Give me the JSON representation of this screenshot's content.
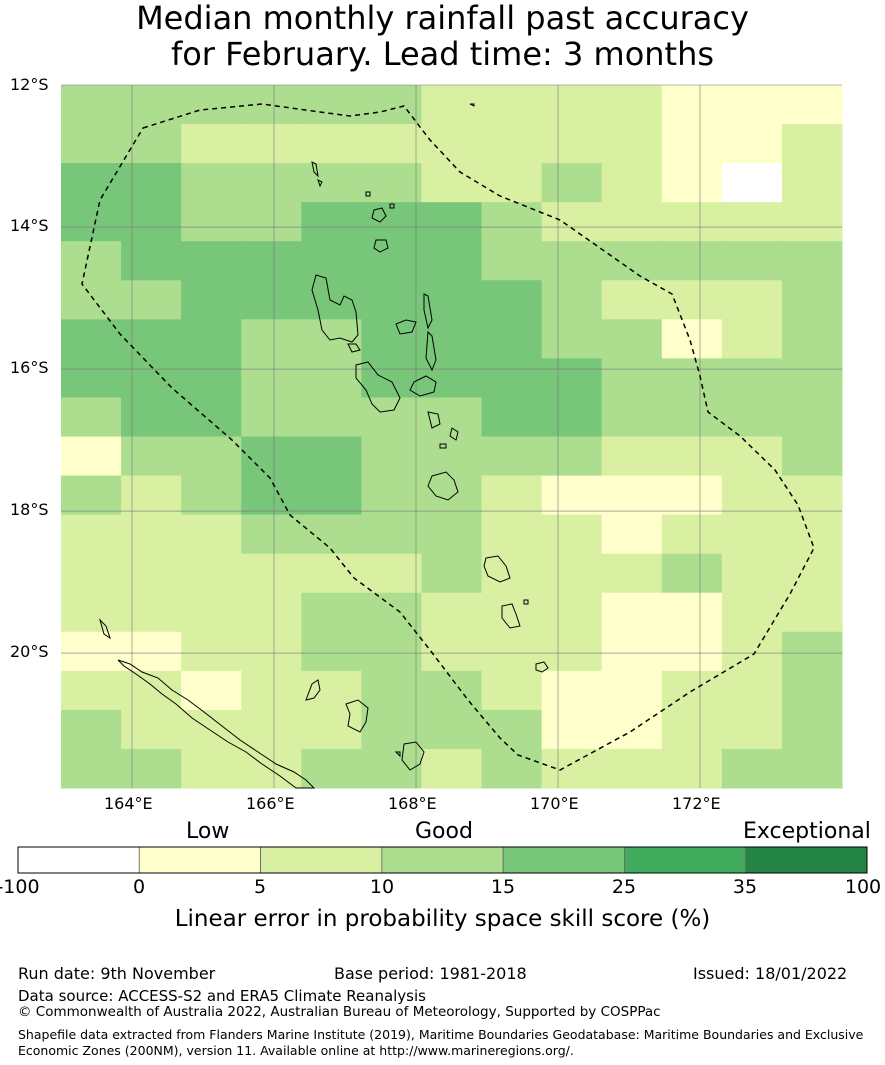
{
  "header": {
    "title_line1": "Median monthly rainfall past accuracy",
    "title_line2": "for February. Lead time: 3 months"
  },
  "map": {
    "lat_labels": [
      "12°S",
      "14°S",
      "16°S",
      "18°S",
      "20°S"
    ],
    "lon_labels": [
      "164°E",
      "166°E",
      "168°E",
      "170°E",
      "172°E"
    ],
    "lat_values": [
      -12,
      -14,
      -16,
      -18,
      -20
    ],
    "lon_values": [
      164,
      166,
      168,
      170,
      172
    ],
    "grid_resolution_deg": 0.8333,
    "columns_per_row": 13,
    "cell_classes_note_values": "Each number is a skill class index: 0=-100..0, 1=0..5, 2=5..10, 3=10..15, 4=15..25, 5=25..35, 6=35..100",
    "cells": [
      [
        3,
        3,
        3,
        3,
        3,
        3,
        2,
        2,
        2,
        2,
        1,
        1,
        1
      ],
      [
        3,
        3,
        2,
        2,
        2,
        2,
        2,
        2,
        2,
        2,
        1,
        1,
        2
      ],
      [
        4,
        4,
        3,
        3,
        3,
        3,
        2,
        2,
        3,
        2,
        1,
        0,
        2
      ],
      [
        4,
        4,
        3,
        3,
        4,
        4,
        4,
        3,
        2,
        2,
        2,
        2,
        2
      ],
      [
        3,
        4,
        4,
        4,
        4,
        4,
        4,
        3,
        3,
        3,
        3,
        3,
        3
      ],
      [
        3,
        3,
        4,
        4,
        4,
        4,
        4,
        4,
        3,
        2,
        2,
        2,
        3
      ],
      [
        4,
        4,
        4,
        3,
        3,
        4,
        4,
        4,
        3,
        3,
        1,
        2,
        3
      ],
      [
        4,
        4,
        4,
        3,
        3,
        4,
        4,
        4,
        4,
        3,
        3,
        3,
        3
      ],
      [
        3,
        4,
        4,
        3,
        3,
        3,
        3,
        4,
        4,
        3,
        3,
        3,
        3
      ],
      [
        1,
        3,
        3,
        4,
        4,
        3,
        3,
        3,
        3,
        2,
        2,
        2,
        3
      ],
      [
        3,
        2,
        3,
        4,
        4,
        3,
        3,
        2,
        1,
        1,
        1,
        2,
        2
      ],
      [
        2,
        2,
        2,
        3,
        3,
        3,
        3,
        2,
        2,
        1,
        2,
        2,
        2
      ],
      [
        2,
        2,
        2,
        2,
        2,
        2,
        3,
        2,
        2,
        2,
        3,
        2,
        2
      ],
      [
        2,
        2,
        2,
        2,
        3,
        3,
        2,
        2,
        2,
        1,
        1,
        2,
        2
      ],
      [
        1,
        1,
        2,
        2,
        3,
        3,
        2,
        2,
        2,
        1,
        1,
        2,
        3
      ],
      [
        2,
        2,
        1,
        2,
        2,
        3,
        3,
        2,
        1,
        1,
        2,
        2,
        3
      ],
      [
        3,
        2,
        2,
        2,
        2,
        3,
        3,
        3,
        1,
        1,
        2,
        2,
        3
      ],
      [
        3,
        3,
        2,
        2,
        3,
        3,
        2,
        3,
        2,
        2,
        2,
        3,
        3
      ]
    ]
  },
  "colorbar": {
    "category_low": "Low",
    "category_good": "Good",
    "category_exceptional": "Exceptional",
    "ticks": [
      "-100",
      "0",
      "5",
      "10",
      "15",
      "25",
      "35",
      "100"
    ],
    "colors": [
      "#ffffff",
      "#ffffcc",
      "#d9f0a3",
      "#addd8e",
      "#78c679",
      "#41ab5d",
      "#238443"
    ],
    "title": "Linear error in probability space skill score (%)"
  },
  "footer": {
    "run_date": "Run date: 9th November",
    "base_period": "Base period: 1981-2018",
    "issued": "Issued: 18/01/2022",
    "data_source": "Data source: ACCESS-S2 and ERA5 Climate Reanalysis",
    "copyright": "© Commonwealth of Australia 2022, Australian Bureau of Meteorology, Supported by COSPPac",
    "shapefile": "Shapefile data extracted from Flanders Marine Institute (2019), Maritime Boundaries Geodatabase: Maritime Boundaries and Exclusive Economic Zones (200NM), version 11. Available online at http://www.marineregions.org/."
  }
}
